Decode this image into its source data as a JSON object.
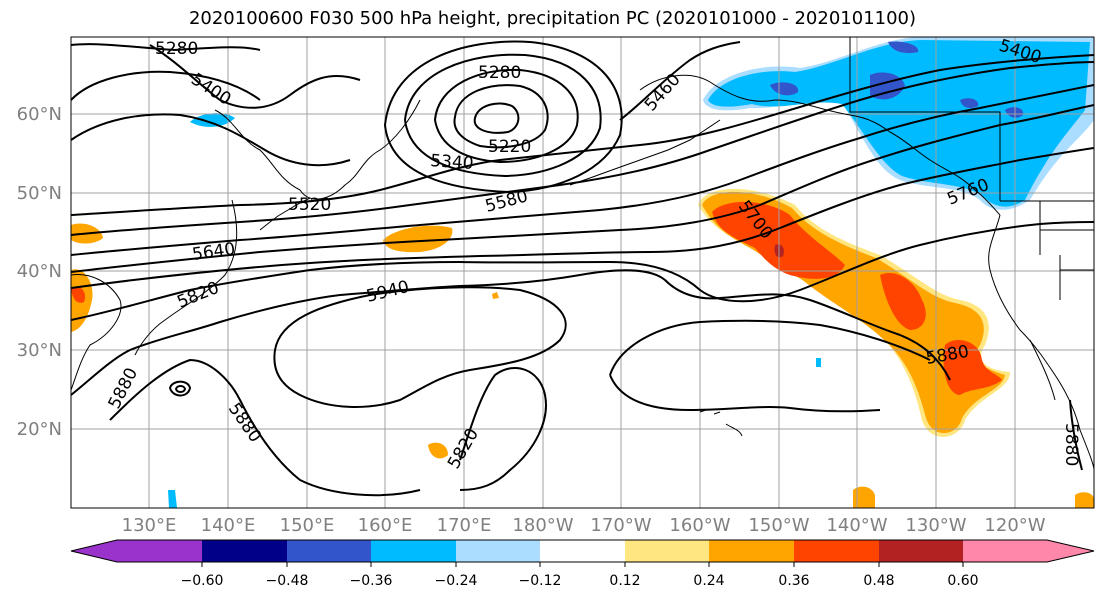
{
  "title": "2020100600 F030 500 hPa height, precipitation PC (2020101000 - 2020101100)",
  "map": {
    "lat_labels": [
      "60°N",
      "50°N",
      "40°N",
      "30°N",
      "20°N"
    ],
    "lon_labels": [
      "130°E",
      "140°E",
      "150°E",
      "160°E",
      "170°E",
      "180°W",
      "170°W",
      "160°W",
      "150°W",
      "140°W",
      "130°W",
      "120°W"
    ],
    "contour_labels": [
      "5280",
      "5400",
      "5280",
      "5220",
      "5340",
      "5400",
      "5460",
      "5520",
      "5580",
      "5640",
      "5700",
      "5760",
      "5820",
      "5940",
      "5880",
      "5880",
      "5880",
      "5820",
      "5880"
    ]
  },
  "colorbar": {
    "tick_labels": [
      "−0.60",
      "−0.48",
      "−0.36",
      "−0.24",
      "−0.12",
      "0.12",
      "0.24",
      "0.36",
      "0.48",
      "0.60"
    ],
    "colors": [
      "#9933cc",
      "#000088",
      "#3355cc",
      "#00bbff",
      "#aaddff",
      "#ffffff",
      "#ffe680",
      "#ffa500",
      "#ff4400",
      "#b22222",
      "#ff88aa"
    ]
  },
  "colors": {
    "height_contour": "#000000",
    "coastline": "#000000",
    "grid": "#a0a0a0",
    "axis_label": "#808080"
  }
}
